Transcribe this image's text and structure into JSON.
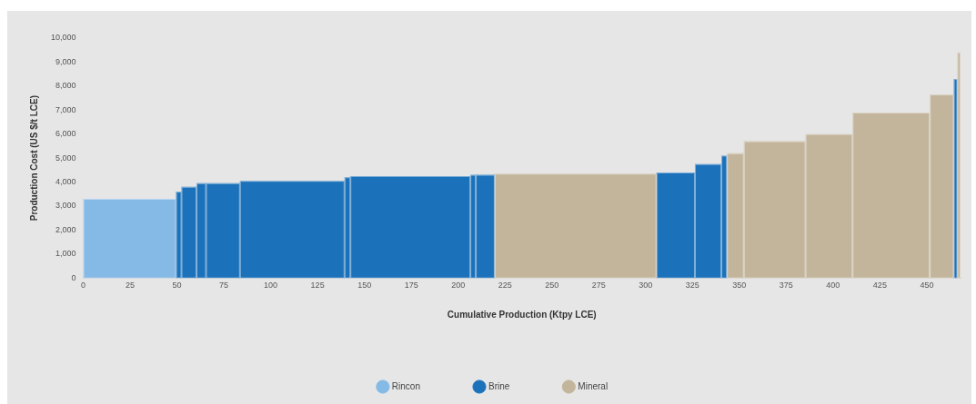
{
  "chart_data": {
    "type": "histogram",
    "xlabel": "Cumulative Production (Ktpy LCE)",
    "ylabel": "Production Cost (US $/t LCE)",
    "bins": [
      0,
      49.5,
      52.4,
      60.4,
      65.5,
      83.6,
      139.4,
      142.5,
      206.5,
      209.4,
      219.5,
      305.8,
      326.3,
      340.4,
      343.4,
      352.4,
      385.3,
      410.4,
      451.6,
      464.4,
      466.3,
      468
    ],
    "series": [
      {
        "name": "Rincon",
        "color": "#85b9e6",
        "values": [
          3300,
          null,
          null,
          null,
          null,
          null,
          null,
          null,
          null,
          null,
          null,
          null,
          null,
          null,
          null,
          null,
          null,
          null,
          null,
          null,
          null
        ]
      },
      {
        "name": "Brine",
        "color": "#1c72ba",
        "values": [
          null,
          3600,
          3800,
          3950,
          3950,
          4050,
          4200,
          4250,
          4300,
          4300,
          null,
          4400,
          4750,
          5100,
          null,
          null,
          null,
          null,
          null,
          8300,
          null
        ]
      },
      {
        "name": "Mineral",
        "color": "#c2b59b",
        "values": [
          null,
          null,
          null,
          null,
          null,
          null,
          null,
          null,
          null,
          null,
          4350,
          null,
          null,
          null,
          5200,
          5700,
          6000,
          6900,
          7650,
          null,
          9400
        ]
      }
    ],
    "xlim": [
      0,
      468
    ],
    "xticks": [
      0,
      25,
      50,
      75,
      100,
      125,
      150,
      175,
      200,
      225,
      250,
      275,
      300,
      325,
      350,
      375,
      400,
      425,
      450
    ],
    "ylim": [
      0,
      10000
    ],
    "yticks": [
      0,
      {
        "value": 1000,
        "label": "1,000"
      },
      {
        "value": 2000,
        "label": "2,000"
      },
      {
        "value": 3000,
        "label": "3,000"
      },
      {
        "value": 4000,
        "label": "4,000"
      },
      {
        "value": 5000,
        "label": "5,000"
      },
      {
        "value": 6000,
        "label": "6,000"
      },
      {
        "value": 7000,
        "label": "7,000"
      },
      {
        "value": 8000,
        "label": "8,000"
      },
      {
        "value": 9000,
        "label": "9,000"
      },
      {
        "value": 10000,
        "label": "10,000"
      }
    ],
    "grid": false,
    "legend": "bottom"
  }
}
